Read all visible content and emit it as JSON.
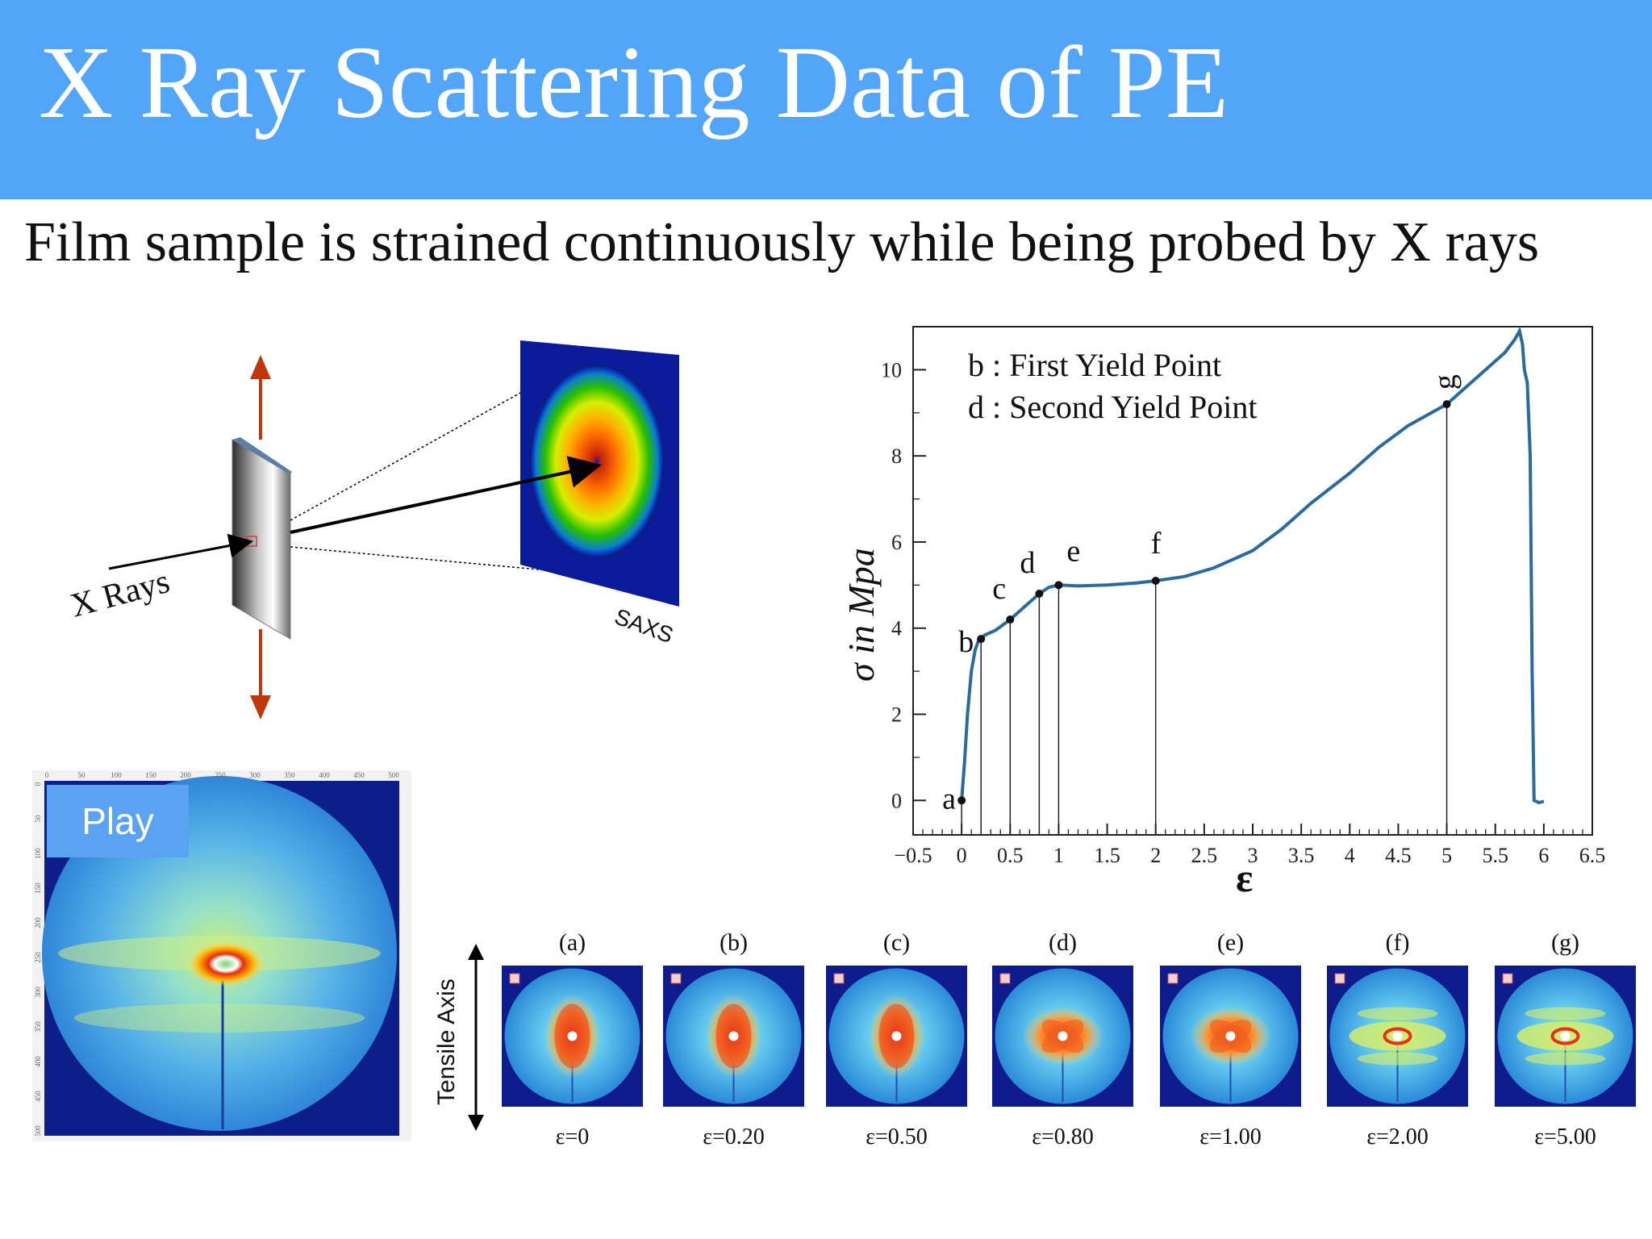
{
  "slide": {
    "title": "X Ray Scattering Data of PE",
    "subtitle": "Film sample is strained continuously while being probed by X rays"
  },
  "schematic": {
    "xrays_label": "X Rays",
    "saxs_label": "SAXS",
    "arrow_color": "#c0360c"
  },
  "video": {
    "play_label": "Play",
    "top_axis_ticks": [
      "0",
      "50",
      "100",
      "150",
      "200",
      "250",
      "300",
      "350",
      "400",
      "450",
      "500"
    ],
    "left_axis_ticks": [
      "0",
      "50",
      "100",
      "150",
      "200",
      "250",
      "300",
      "350",
      "400",
      "450",
      "500"
    ]
  },
  "chart_data": {
    "type": "line",
    "xlabel": "ε",
    "ylabel": "σ in Mpa",
    "xlim": [
      -0.5,
      6.5
    ],
    "ylim": [
      -0.8,
      11.0
    ],
    "x_ticks": [
      "−0.5",
      "0",
      "0.5",
      "1",
      "1.5",
      "2",
      "2.5",
      "3",
      "3.5",
      "4",
      "4.5",
      "5",
      "5.5",
      "6",
      "6.5"
    ],
    "y_ticks": [
      "0",
      "2",
      "4",
      "6",
      "8",
      "10"
    ],
    "legend": [
      "b : First Yield Point",
      "d : Second Yield Point"
    ],
    "line_color": "#2a6a9e",
    "series": [
      {
        "x": [
          0,
          0.03,
          0.06,
          0.1,
          0.14,
          0.18,
          0.25,
          0.35,
          0.5,
          0.65,
          0.8,
          0.9,
          1.0,
          1.2,
          1.5,
          1.8,
          2.0,
          2.3,
          2.6,
          3.0,
          3.3,
          3.6,
          4.0,
          4.3,
          4.6,
          5.0,
          5.2,
          5.4,
          5.6,
          5.7,
          5.75,
          5.78,
          5.8,
          5.83,
          5.86,
          5.88,
          5.9,
          5.95,
          6.0
        ],
        "y": [
          0,
          0.9,
          2.0,
          3.0,
          3.5,
          3.75,
          3.85,
          3.95,
          4.2,
          4.5,
          4.8,
          4.95,
          5.0,
          4.98,
          5.0,
          5.05,
          5.1,
          5.2,
          5.4,
          5.8,
          6.3,
          6.9,
          7.6,
          8.2,
          8.7,
          9.2,
          9.6,
          10.0,
          10.4,
          10.7,
          10.9,
          10.6,
          10.0,
          9.7,
          8.0,
          3.0,
          0.0,
          -0.05,
          -0.02
        ]
      }
    ],
    "points": [
      {
        "label": "a",
        "x": 0.0,
        "y": 0.0
      },
      {
        "label": "b",
        "x": 0.2,
        "y": 3.75
      },
      {
        "label": "c",
        "x": 0.5,
        "y": 4.2
      },
      {
        "label": "d",
        "x": 0.8,
        "y": 4.8
      },
      {
        "label": "e",
        "x": 1.0,
        "y": 5.0
      },
      {
        "label": "f",
        "x": 2.0,
        "y": 5.1
      },
      {
        "label": "g",
        "x": 5.0,
        "y": 9.2
      }
    ]
  },
  "patterns": {
    "axis_label": "Tensile Axis",
    "items": [
      {
        "label": "(a)",
        "strain": "ε=0",
        "shape": "vertical"
      },
      {
        "label": "(b)",
        "strain": "ε=0.20",
        "shape": "vertical"
      },
      {
        "label": "(c)",
        "strain": "ε=0.50",
        "shape": "vertical"
      },
      {
        "label": "(d)",
        "strain": "ε=0.80",
        "shape": "cross"
      },
      {
        "label": "(e)",
        "strain": "ε=1.00",
        "shape": "cross"
      },
      {
        "label": "(f)",
        "strain": "ε=2.00",
        "shape": "horizontal"
      },
      {
        "label": "(g)",
        "strain": "ε=5.00",
        "shape": "horizontal"
      }
    ]
  }
}
